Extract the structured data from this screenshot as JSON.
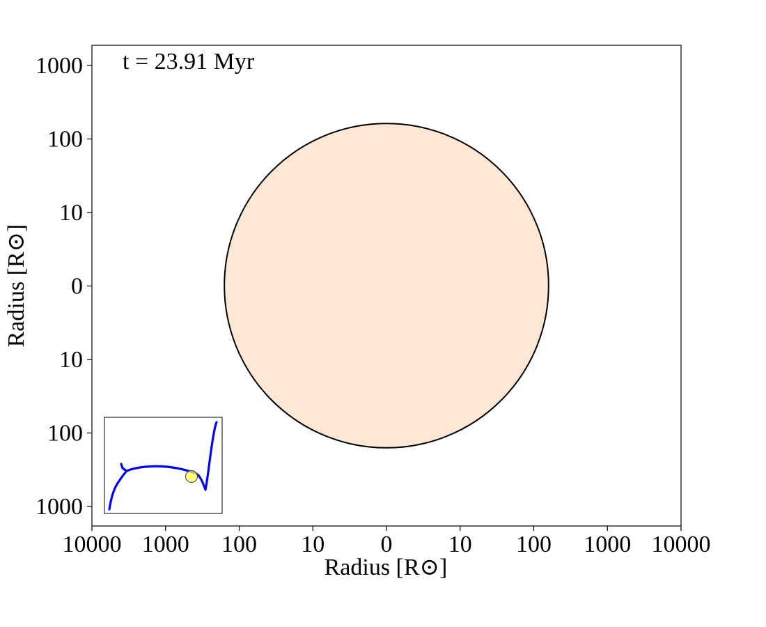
{
  "chart_data": {
    "type": "scatter",
    "annotation": "t = 23.91 Myr",
    "xlabel": "Radius [R⊙]",
    "ylabel": "Radius [R⊙]",
    "x_ticks": [
      "10000",
      "1000",
      "100",
      "10",
      "0",
      "10",
      "100",
      "1000",
      "10000"
    ],
    "y_ticks": [
      "1000",
      "100",
      "10",
      "0",
      "10",
      "100",
      "1000"
    ],
    "scale": "symlog",
    "xlim": [
      -10000,
      10000
    ],
    "ylim": [
      -1000,
      1000
    ],
    "star": {
      "radius": 160,
      "fill_color": "#ffe7d6",
      "edge_color": "#000000"
    },
    "inset": {
      "description_series": "evolutionary track",
      "track_color": "#0000ff",
      "marker_color": "#ffff55",
      "grid": false
    },
    "grid": false
  }
}
